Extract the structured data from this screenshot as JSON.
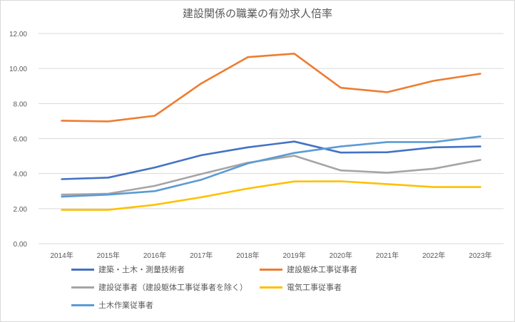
{
  "chart_data": {
    "type": "line",
    "title": "建設関係の職業の有効求人倍率",
    "categories": [
      "2014年",
      "2015年",
      "2016年",
      "2017年",
      "2018年",
      "2019年",
      "2020年",
      "2021年",
      "2022年",
      "2023年"
    ],
    "y_ticks": [
      "0.00",
      "2.00",
      "4.00",
      "6.00",
      "8.00",
      "10.00",
      "12.00"
    ],
    "ylim": [
      0,
      12
    ],
    "grid": true,
    "legend_position": "bottom",
    "series": [
      {
        "name": "建築・土木・測量技術者",
        "color": "#4472c4",
        "values": [
          3.68,
          3.77,
          4.35,
          5.05,
          5.5,
          5.83,
          5.2,
          5.22,
          5.5,
          5.55
        ]
      },
      {
        "name": "建設躯体工事従事者",
        "color": "#ed7d31",
        "values": [
          7.02,
          6.98,
          7.3,
          9.15,
          10.65,
          10.85,
          8.9,
          8.65,
          9.3,
          9.7
        ]
      },
      {
        "name": "建設従事者（建設躯体工事従事者を除く）",
        "color": "#a5a5a5",
        "values": [
          2.8,
          2.85,
          3.3,
          3.98,
          4.62,
          5.02,
          4.18,
          4.05,
          4.28,
          4.78
        ]
      },
      {
        "name": "電気工事従事者",
        "color": "#ffc000",
        "values": [
          1.93,
          1.93,
          2.22,
          2.65,
          3.15,
          3.55,
          3.56,
          3.4,
          3.23,
          3.23
        ]
      },
      {
        "name": "土木作業従事者",
        "color": "#5b9bd5",
        "values": [
          2.68,
          2.8,
          3.0,
          3.65,
          4.58,
          5.18,
          5.55,
          5.8,
          5.8,
          6.12
        ]
      }
    ]
  }
}
